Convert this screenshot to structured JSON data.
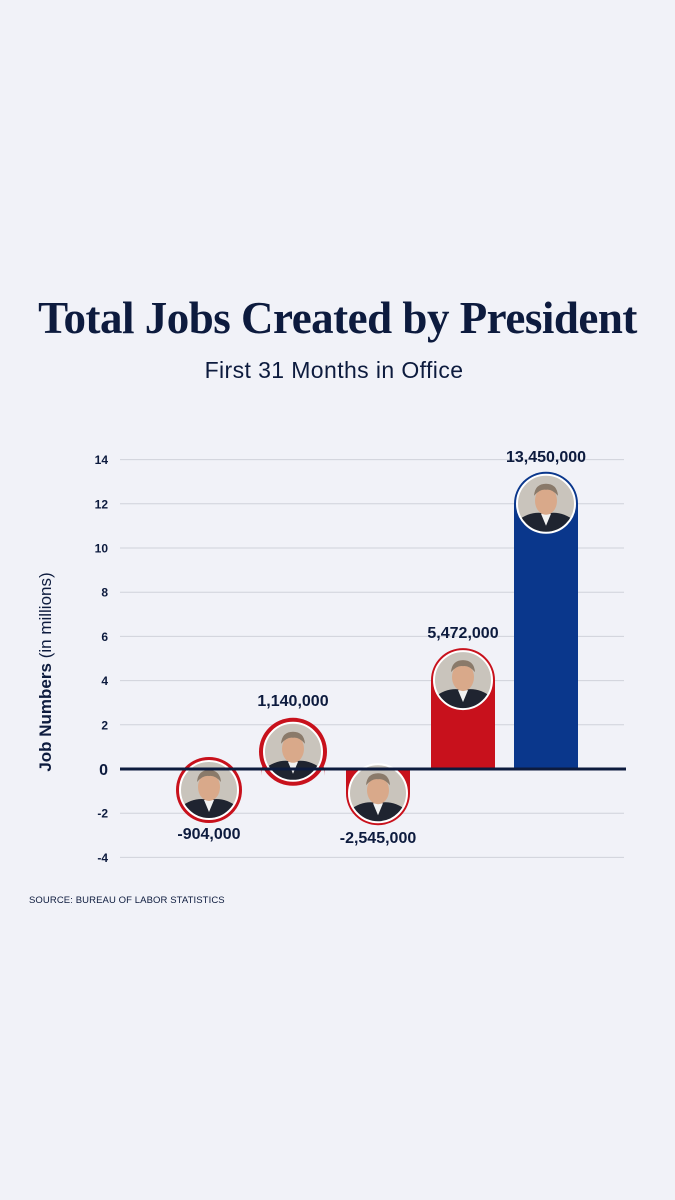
{
  "title": "Total Jobs Created by President",
  "subtitle": "First 31 Months in Office",
  "ylabel_bold": "Job Numbers",
  "ylabel_rest": "(in millions)",
  "source": "SOURCE: BUREAU OF LABOR STATISTICS",
  "colors": {
    "background": "#f1f2f8",
    "text": "#0d1b3e",
    "red": "#c8111c",
    "blue": "#0a378c",
    "grid": "#cfd2da",
    "axis": "#0d1b3e"
  },
  "chart_data": {
    "type": "bar",
    "ylim": [
      -4,
      14
    ],
    "yticks": [
      "14",
      "12",
      "10",
      "8",
      "6",
      "4",
      "2",
      "0",
      "-2",
      "-4"
    ],
    "grid": true,
    "values": [
      -0.904,
      1.14,
      -2.545,
      5.472,
      13.45
    ],
    "data_labels": [
      "-904,000",
      "1,140,000",
      "-2,545,000",
      "5,472,000",
      "13,450,000"
    ],
    "bar_colors": [
      "red",
      "red",
      "red",
      "red",
      "blue"
    ],
    "bar_icons": [
      "portrait-reagan-icon",
      "portrait-bush-sr-icon",
      "portrait-bush-jr-icon",
      "portrait-trump-icon",
      "portrait-biden-icon"
    ]
  }
}
